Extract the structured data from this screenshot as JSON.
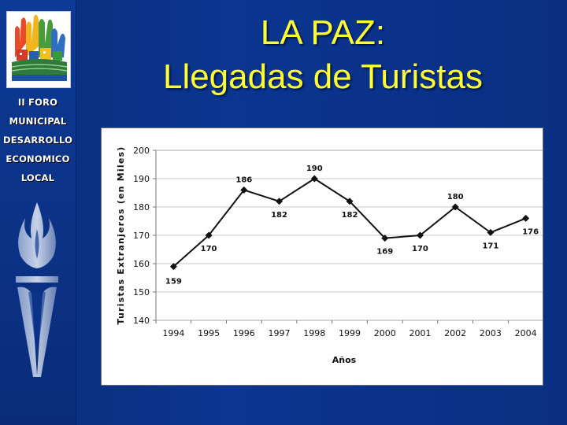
{
  "sidebar": {
    "forum_lines": [
      "II FORO",
      "MUNICIPAL",
      "DESARROLLO",
      "ECONOMICO",
      "LOCAL"
    ]
  },
  "title": {
    "line1": "LA PAZ:",
    "line2": "Llegadas de Turistas"
  },
  "colors": {
    "background": "#0b3590",
    "title": "#ffff33",
    "series": "#111111"
  },
  "chart_data": {
    "type": "line",
    "x": [
      "1994",
      "1995",
      "1996",
      "1997",
      "1998",
      "1999",
      "2000",
      "2001",
      "2002",
      "2003",
      "2004"
    ],
    "series": [
      {
        "values": [
          159,
          170,
          186,
          182,
          190,
          182,
          169,
          170,
          180,
          171,
          176
        ]
      }
    ],
    "data_labels": [
      "159",
      "170",
      "186",
      "182",
      "190",
      "182",
      "169",
      "170",
      "180",
      "171",
      "176"
    ],
    "xlabel": "Años",
    "ylabel": "Turistas Extranjeros (en Miles)",
    "ylim": [
      140,
      200
    ],
    "yticks": [
      140,
      150,
      160,
      170,
      180,
      190,
      200
    ],
    "grid": true,
    "legend": "none"
  }
}
